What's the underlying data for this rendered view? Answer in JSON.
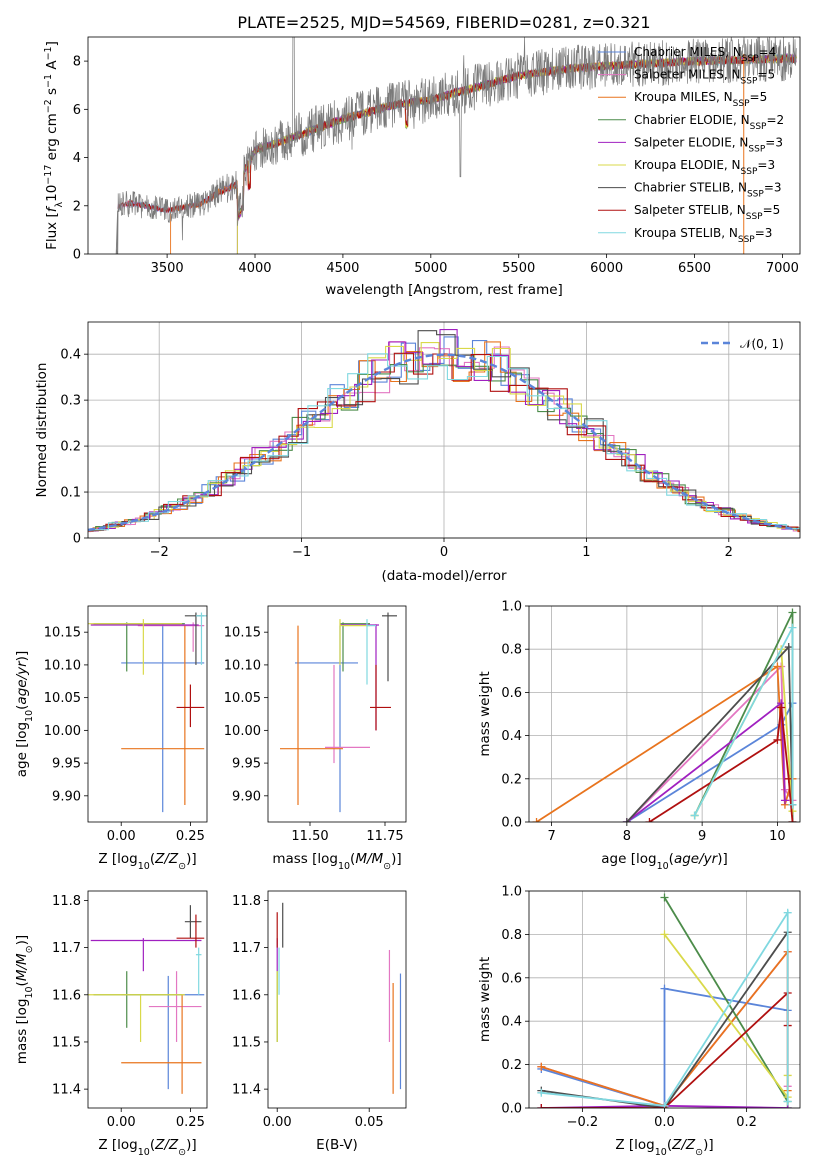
{
  "series": [
    {
      "name": "Chabrier MILES, N",
      "sub": "SSP",
      "tail": "=4",
      "color": "#5b85d9"
    },
    {
      "name": "Salpeter MILES, N",
      "sub": "SSP",
      "tail": "=5",
      "color": "#e377c2"
    },
    {
      "name": "Kroupa MILES, N",
      "sub": "SSP",
      "tail": "=5",
      "color": "#e8741e"
    },
    {
      "name": "Chabrier ELODIE, N",
      "sub": "SSP",
      "tail": "=2",
      "color": "#4c8c4a"
    },
    {
      "name": "Salpeter ELODIE, N",
      "sub": "SSP",
      "tail": "=3",
      "color": "#a020c0"
    },
    {
      "name": "Kroupa ELODIE, N",
      "sub": "SSP",
      "tail": "=3",
      "color": "#d9d94a"
    },
    {
      "name": "Chabrier STELIB, N",
      "sub": "SSP",
      "tail": "=3",
      "color": "#4d4d4d"
    },
    {
      "name": "Salpeter STELIB, N",
      "sub": "SSP",
      "tail": "=5",
      "color": "#b01010"
    },
    {
      "name": "Kroupa STELIB, N",
      "sub": "SSP",
      "tail": "=3",
      "color": "#80d8e0"
    }
  ],
  "chart_data": [
    {
      "type": "line",
      "title": "PLATE=2525, MJD=54569, FIBERID=0281, z=0.321",
      "xlabel": "wavelength [Angstrom, rest frame]",
      "ylabel": "Flux [f_λ10^-17 erg cm^-2 s^-1 A^-1]",
      "xlim": [
        3050,
        7100
      ],
      "ylim": [
        0,
        9
      ],
      "xticks": [
        3500,
        4000,
        4500,
        5000,
        5500,
        6000,
        6500,
        7000
      ],
      "yticks": [
        0,
        2,
        4,
        6,
        8
      ],
      "spectrum_anchor_points": {
        "wavelength": [
          3220,
          3300,
          3500,
          3700,
          3800,
          3900,
          4000,
          4200,
          4500,
          4800,
          5000,
          5200,
          5500,
          5800,
          6000,
          6500,
          7000
        ],
        "flux": [
          2.0,
          2.1,
          1.8,
          2.1,
          2.6,
          2.9,
          4.3,
          4.8,
          5.6,
          6.2,
          6.4,
          6.8,
          7.4,
          7.7,
          7.8,
          8.0,
          8.1
        ]
      },
      "legend_position": "right"
    },
    {
      "type": "bar",
      "xlabel": "(data-model)/error",
      "ylabel": "Normed distribution",
      "xlim": [
        -2.5,
        2.5
      ],
      "ylim": [
        0,
        0.47
      ],
      "xticks": [
        -2,
        -1,
        0,
        1,
        2
      ],
      "yticks": [
        0.0,
        0.1,
        0.2,
        0.3,
        0.4
      ],
      "reference_curve": "N(0,1)",
      "legend": "𝒩(0, 1)",
      "grid": true
    },
    {
      "type": "scatter",
      "xlabel": "Z [log10(Z/Z⊙)]",
      "ylabel": "age  [log10(age/yr)]",
      "xlim": [
        -0.12,
        0.31
      ],
      "ylim": [
        9.86,
        10.19
      ],
      "xticks": [
        "0.00",
        "0.25"
      ],
      "yticks": [
        "9.90",
        "9.95",
        "10.00",
        "10.05",
        "10.10",
        "10.15"
      ],
      "points": [
        {
          "s": 0,
          "x": 0.15,
          "y": 10.103,
          "xe": [
            0.0,
            0.3
          ],
          "ye": [
            9.875,
            10.16
          ]
        },
        {
          "s": 1,
          "x": 0.26,
          "y": 10.16,
          "xe": [
            0.06,
            0.3
          ],
          "ye": [
            10.12,
            10.165
          ]
        },
        {
          "s": 2,
          "x": 0.23,
          "y": 9.972,
          "xe": [
            0.0,
            0.3
          ],
          "ye": [
            9.886,
            10.16
          ]
        },
        {
          "s": 3,
          "x": 0.02,
          "y": 10.163,
          "xe": [
            -0.1,
            0.23
          ],
          "ye": [
            10.09,
            10.165
          ]
        },
        {
          "s": 4,
          "x": 0.15,
          "y": 10.161,
          "xe": [
            -0.11,
            0.28
          ],
          "ye": [
            10.16,
            10.162
          ]
        },
        {
          "s": 5,
          "x": 0.08,
          "y": 10.163,
          "xe": [
            -0.12,
            0.22
          ],
          "ye": [
            10.085,
            10.17
          ]
        },
        {
          "s": 6,
          "x": 0.27,
          "y": 10.175,
          "xe": [
            0.23,
            0.3
          ],
          "ye": [
            10.1,
            10.18
          ]
        },
        {
          "s": 7,
          "x": 0.25,
          "y": 10.035,
          "xe": [
            0.2,
            0.3
          ],
          "ye": [
            10.005,
            10.07
          ]
        },
        {
          "s": 8,
          "x": 0.29,
          "y": 10.175,
          "xe": [
            0.27,
            0.31
          ],
          "ye": [
            10.1,
            10.18
          ]
        }
      ]
    },
    {
      "type": "scatter",
      "xlabel": "mass [log10(M/M⊙)]",
      "ylabel": "",
      "xlim": [
        11.36,
        11.82
      ],
      "ylim": [
        9.86,
        10.19
      ],
      "xticks": [
        "11.50",
        "11.75"
      ],
      "yticks": [
        "9.90",
        "9.95",
        "10.00",
        "10.05",
        "10.10",
        "10.15"
      ],
      "points": [
        {
          "s": 0,
          "x": 11.6,
          "y": 10.103,
          "xe": [
            11.45,
            11.66
          ],
          "ye": [
            9.875,
            10.16
          ]
        },
        {
          "s": 1,
          "x": 11.58,
          "y": 9.974,
          "xe": [
            11.55,
            11.7
          ],
          "ye": [
            9.95,
            10.1
          ]
        },
        {
          "s": 2,
          "x": 11.46,
          "y": 9.972,
          "xe": [
            11.4,
            11.61
          ],
          "ye": [
            9.886,
            10.16
          ]
        },
        {
          "s": 3,
          "x": 11.61,
          "y": 10.163,
          "xe": [
            11.6,
            11.7
          ],
          "ye": [
            10.09,
            10.165
          ]
        },
        {
          "s": 4,
          "x": 11.72,
          "y": 10.161,
          "xe": [
            11.6,
            11.73
          ],
          "ye": [
            10.0,
            10.162
          ]
        },
        {
          "s": 5,
          "x": 11.6,
          "y": 10.16,
          "xe": [
            11.6,
            11.7
          ],
          "ye": [
            10.1,
            10.17
          ]
        },
        {
          "s": 6,
          "x": 11.76,
          "y": 10.175,
          "xe": [
            11.74,
            11.79
          ],
          "ye": [
            10.075,
            10.18
          ]
        },
        {
          "s": 7,
          "x": 11.72,
          "y": 10.035,
          "xe": [
            11.7,
            11.77
          ],
          "ye": [
            10.0,
            10.1
          ]
        },
        {
          "s": 8,
          "x": 11.69,
          "y": 10.16,
          "xe": [
            11.69,
            11.72
          ],
          "ye": [
            10.07,
            10.17
          ]
        }
      ]
    },
    {
      "type": "line",
      "xlabel": "age  [log10(age/yr)]",
      "ylabel": "mass weight",
      "xlim": [
        6.7,
        10.3
      ],
      "ylim": [
        0,
        1
      ],
      "xticks": [
        "7",
        "8",
        "9",
        "10"
      ],
      "yticks": [
        "0.0",
        "0.2",
        "0.4",
        "0.6",
        "0.8",
        "1.0"
      ],
      "grid": true,
      "lines": [
        {
          "s": 0,
          "x": [
            8.0,
            10.05,
            10.2,
            10.2
          ],
          "y": [
            0.0,
            0.45,
            0.55,
            0.0
          ]
        },
        {
          "s": 1,
          "x": [
            8.0,
            10.05,
            10.1,
            10.2
          ],
          "y": [
            0.0,
            0.72,
            0.15,
            0.1
          ]
        },
        {
          "s": 2,
          "x": [
            6.8,
            10.0,
            10.1,
            10.2
          ],
          "y": [
            0.0,
            0.72,
            0.08,
            0.2
          ]
        },
        {
          "s": 3,
          "x": [
            8.9,
            10.2,
            10.2
          ],
          "y": [
            0.03,
            0.97,
            0.0
          ]
        },
        {
          "s": 4,
          "x": [
            8.0,
            10.05,
            10.1
          ],
          "y": [
            0.0,
            0.55,
            0.1
          ]
        },
        {
          "s": 5,
          "x": [
            8.9,
            10.05,
            10.2
          ],
          "y": [
            0.03,
            0.8,
            0.05
          ]
        },
        {
          "s": 6,
          "x": [
            8.0,
            10.15,
            10.2
          ],
          "y": [
            0.0,
            0.81,
            0.08
          ]
        },
        {
          "s": 7,
          "x": [
            8.3,
            10.0,
            10.05,
            10.15,
            10.2
          ],
          "y": [
            0.0,
            0.38,
            0.53,
            0.2,
            0.0
          ]
        },
        {
          "s": 8,
          "x": [
            8.9,
            10.2,
            10.2
          ],
          "y": [
            0.03,
            0.9,
            0.08
          ]
        }
      ]
    },
    {
      "type": "scatter",
      "xlabel": "Z [log10(Z/Z⊙)]",
      "ylabel": "mass [log10(M/M⊙)]",
      "xlim": [
        -0.12,
        0.31
      ],
      "ylim": [
        11.36,
        11.82
      ],
      "xticks": [
        "0.00",
        "0.25"
      ],
      "yticks": [
        "11.4",
        "11.5",
        "11.6",
        "11.7",
        "11.8"
      ],
      "points": [
        {
          "s": 0,
          "x": 0.17,
          "y": 11.6,
          "xe": [
            0.0,
            0.3
          ],
          "ye": [
            11.4,
            11.64
          ]
        },
        {
          "s": 1,
          "x": 0.2,
          "y": 11.575,
          "xe": [
            0.1,
            0.29
          ],
          "ye": [
            11.5,
            11.65
          ]
        },
        {
          "s": 2,
          "x": 0.22,
          "y": 11.456,
          "xe": [
            0.0,
            0.29
          ],
          "ye": [
            11.39,
            11.6
          ]
        },
        {
          "s": 3,
          "x": 0.02,
          "y": 11.6,
          "xe": [
            -0.1,
            0.22
          ],
          "ye": [
            11.53,
            11.65
          ]
        },
        {
          "s": 4,
          "x": 0.08,
          "y": 11.715,
          "xe": [
            -0.11,
            0.29
          ],
          "ye": [
            11.65,
            11.72
          ]
        },
        {
          "s": 5,
          "x": 0.07,
          "y": 11.6,
          "xe": [
            -0.12,
            0.23
          ],
          "ye": [
            11.5,
            11.6
          ]
        },
        {
          "s": 6,
          "x": 0.25,
          "y": 11.755,
          "xe": [
            0.23,
            0.29
          ],
          "ye": [
            11.72,
            11.79
          ]
        },
        {
          "s": 7,
          "x": 0.27,
          "y": 11.72,
          "xe": [
            0.2,
            0.3
          ],
          "ye": [
            11.7,
            11.77
          ]
        },
        {
          "s": 8,
          "x": 0.28,
          "y": 11.685,
          "xe": [
            0.27,
            0.29
          ],
          "ye": [
            11.6,
            11.7
          ]
        }
      ]
    },
    {
      "type": "scatter",
      "xlabel": "E(B-V)",
      "ylabel": "",
      "xlim": [
        -0.005,
        0.07
      ],
      "ylim": [
        11.36,
        11.82
      ],
      "xticks": [
        "0.00",
        "0.05"
      ],
      "yticks": [
        "11.4",
        "11.5",
        "11.6",
        "11.7",
        "11.8"
      ],
      "points": [
        {
          "s": 0,
          "x": 0.067,
          "y": 11.64,
          "ye": [
            11.4,
            11.645
          ]
        },
        {
          "s": 1,
          "x": 0.061,
          "y": 11.69,
          "ye": [
            11.5,
            11.695
          ]
        },
        {
          "s": 2,
          "x": 0.063,
          "y": 11.62,
          "ye": [
            11.39,
            11.625
          ]
        },
        {
          "s": 3,
          "x": 0.0,
          "y": 11.6,
          "ye": [
            11.5,
            11.65
          ]
        },
        {
          "s": 4,
          "x": 0.0,
          "y": 11.72,
          "ye": [
            11.65,
            11.72
          ]
        },
        {
          "s": 5,
          "x": 0.0,
          "y": 11.6,
          "ye": [
            11.5,
            11.65
          ]
        },
        {
          "s": 6,
          "x": 0.003,
          "y": 11.79,
          "ye": [
            11.7,
            11.795
          ]
        },
        {
          "s": 7,
          "x": 0.0,
          "y": 11.77,
          "ye": [
            11.7,
            11.775
          ]
        },
        {
          "s": 8,
          "x": 0.001,
          "y": 11.69,
          "ye": [
            11.6,
            11.7
          ]
        }
      ]
    },
    {
      "type": "line",
      "xlabel": "Z [log10(Z/Z⊙)]",
      "ylabel": "mass weight",
      "xlim": [
        -0.33,
        0.33
      ],
      "ylim": [
        0,
        1
      ],
      "xticks": [
        "-0.2",
        "0.0",
        "0.2"
      ],
      "yticks": [
        "0.0",
        "0.2",
        "0.4",
        "0.6",
        "0.8",
        "1.0"
      ],
      "grid": true,
      "lines": [
        {
          "s": 0,
          "x": [
            -0.3,
            0.0,
            0.0,
            0.3
          ],
          "y": [
            0.18,
            0.01,
            0.55,
            0.45
          ]
        },
        {
          "s": 1,
          "x": [
            -0.3,
            0.0,
            0.3,
            0.3
          ],
          "y": [
            0.19,
            0.01,
            0.72,
            0.1
          ]
        },
        {
          "s": 2,
          "x": [
            -0.3,
            0.0,
            0.3,
            0.3
          ],
          "y": [
            0.19,
            0.01,
            0.72,
            0.08
          ]
        },
        {
          "s": 3,
          "x": [
            0.0,
            0.3,
            0.3
          ],
          "y": [
            0.97,
            0.03,
            0.0
          ]
        },
        {
          "s": 4,
          "x": [
            -0.3,
            0.0,
            0.3
          ],
          "y": [
            0.0,
            0.01,
            0.0
          ]
        },
        {
          "s": 5,
          "x": [
            0.0,
            0.3,
            0.3
          ],
          "y": [
            0.8,
            0.05,
            0.15
          ]
        },
        {
          "s": 6,
          "x": [
            -0.3,
            0.0,
            0.3
          ],
          "y": [
            0.08,
            0.0,
            0.81
          ]
        },
        {
          "s": 7,
          "x": [
            -0.3,
            0.0,
            0.3,
            0.3
          ],
          "y": [
            0.0,
            0.0,
            0.53,
            0.38
          ]
        },
        {
          "s": 8,
          "x": [
            -0.3,
            0.0,
            0.3,
            0.3
          ],
          "y": [
            0.07,
            0.01,
            0.9,
            0.03
          ]
        }
      ]
    }
  ]
}
